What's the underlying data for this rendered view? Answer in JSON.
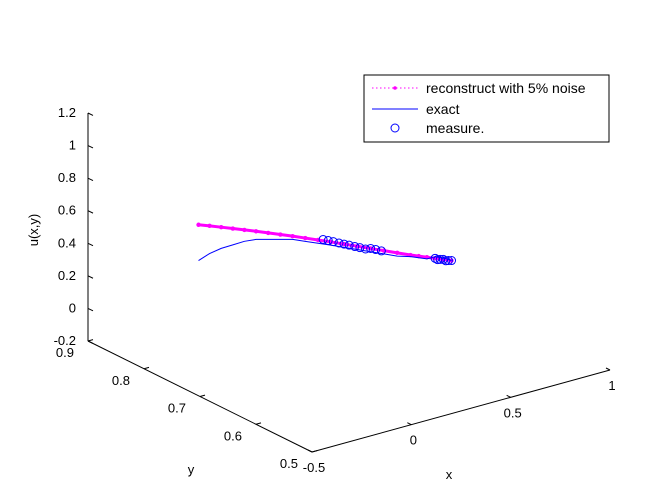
{
  "chart_data": {
    "type": "line",
    "projection": "3d",
    "zlabel": "u(x,y)",
    "ylabel": "y",
    "xlabel": "x",
    "z_ticks": [
      "-0.2",
      "0",
      "0.2",
      "0.4",
      "0.6",
      "0.8",
      "1",
      "1.2"
    ],
    "y_ticks": [
      "0.5",
      "0.6",
      "0.7",
      "0.8",
      "0.9"
    ],
    "x_ticks": [
      "-0.5",
      "0",
      "0.5",
      "1"
    ],
    "xlim": [
      -0.5,
      1
    ],
    "ylim": [
      0.5,
      0.9
    ],
    "zlim": [
      -0.2,
      1.2
    ],
    "grid": false,
    "legend_position": "top-right",
    "series": [
      {
        "name": "reconstruct with 5% noise",
        "style": "dotted-with-point-markers",
        "color": "#ff00ff",
        "points": [
          [
            0.0,
            0.88,
            0.38
          ],
          [
            0.05,
            0.878,
            0.36
          ],
          [
            0.1,
            0.875,
            0.34
          ],
          [
            0.15,
            0.872,
            0.32
          ],
          [
            0.2,
            0.869,
            0.3
          ],
          [
            0.25,
            0.866,
            0.28
          ],
          [
            0.3,
            0.862,
            0.26
          ],
          [
            0.35,
            0.858,
            0.24
          ],
          [
            0.4,
            0.854,
            0.22
          ],
          [
            0.45,
            0.849,
            0.2
          ],
          [
            0.5,
            0.844,
            0.18
          ],
          [
            0.55,
            0.839,
            0.16
          ],
          [
            0.6,
            0.833,
            0.14
          ],
          [
            0.65,
            0.827,
            0.12
          ],
          [
            0.7,
            0.821,
            0.1
          ],
          [
            0.75,
            0.815,
            0.08
          ],
          [
            0.8,
            0.809,
            0.06
          ],
          [
            0.85,
            0.803,
            0.04
          ],
          [
            0.88,
            0.799,
            0.03
          ],
          [
            0.91,
            0.795,
            0.02
          ],
          [
            0.94,
            0.791,
            0.01
          ],
          [
            0.97,
            0.787,
            0.0
          ],
          [
            1.0,
            0.783,
            -0.01
          ]
        ]
      },
      {
        "name": "exact",
        "style": "solid",
        "color": "#0000ff",
        "points": [
          [
            0.0,
            0.88,
            0.16
          ],
          [
            0.05,
            0.878,
            0.19
          ],
          [
            0.1,
            0.875,
            0.21
          ],
          [
            0.15,
            0.872,
            0.22
          ],
          [
            0.2,
            0.869,
            0.23
          ],
          [
            0.25,
            0.866,
            0.23
          ],
          [
            0.3,
            0.862,
            0.22
          ],
          [
            0.35,
            0.858,
            0.21
          ],
          [
            0.4,
            0.854,
            0.2
          ],
          [
            0.45,
            0.849,
            0.18
          ],
          [
            0.5,
            0.844,
            0.16
          ],
          [
            0.55,
            0.839,
            0.14
          ],
          [
            0.6,
            0.833,
            0.12
          ],
          [
            0.65,
            0.827,
            0.1
          ],
          [
            0.7,
            0.821,
            0.08
          ],
          [
            0.75,
            0.815,
            0.06
          ],
          [
            0.8,
            0.809,
            0.04
          ],
          [
            0.85,
            0.803,
            0.03
          ],
          [
            0.88,
            0.799,
            0.02
          ],
          [
            0.91,
            0.795,
            0.01
          ],
          [
            0.94,
            0.791,
            0.02
          ],
          [
            0.97,
            0.787,
            0.01
          ],
          [
            1.0,
            0.783,
            -0.01
          ]
        ]
      },
      {
        "name": "measure.",
        "style": "circle-markers",
        "color": "#0000ff",
        "points": [
          [
            0.52,
            0.842,
            0.18
          ],
          [
            0.54,
            0.84,
            0.17
          ],
          [
            0.56,
            0.838,
            0.16
          ],
          [
            0.58,
            0.835,
            0.15
          ],
          [
            0.6,
            0.833,
            0.14
          ],
          [
            0.62,
            0.831,
            0.13
          ],
          [
            0.64,
            0.828,
            0.12
          ],
          [
            0.66,
            0.826,
            0.11
          ],
          [
            0.68,
            0.823,
            0.1
          ],
          [
            0.7,
            0.821,
            0.1
          ],
          [
            0.72,
            0.819,
            0.09
          ],
          [
            0.74,
            0.816,
            0.08
          ],
          [
            0.94,
            0.791,
            0.01
          ],
          [
            0.95,
            0.79,
            0.0
          ],
          [
            0.96,
            0.789,
            0.0
          ],
          [
            0.97,
            0.787,
            0.0
          ],
          [
            0.98,
            0.786,
            -0.01
          ],
          [
            0.99,
            0.785,
            -0.01
          ],
          [
            1.0,
            0.783,
            -0.01
          ]
        ]
      }
    ]
  }
}
